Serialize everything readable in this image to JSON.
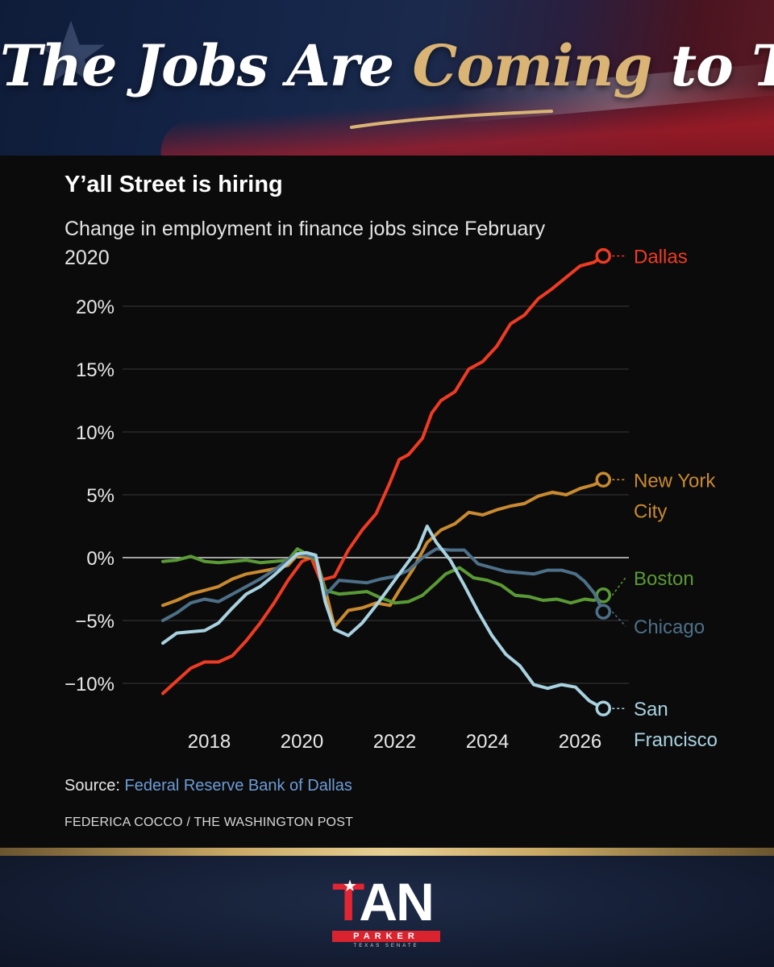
{
  "header": {
    "headline_part1": "The Jobs Are ",
    "headline_highlight": "Coming",
    "headline_part2": " to Texas."
  },
  "chart_data": {
    "type": "line",
    "title": "Y’all Street is hiring",
    "subtitle": "Change in employment in finance jobs since February 2020",
    "ylim": [
      -12.5,
      24
    ],
    "xlim": [
      2017,
      2026.6
    ],
    "y_ticks": [
      20,
      15,
      10,
      5,
      0,
      -5,
      -10
    ],
    "y_tick_labels": [
      "20%",
      "15%",
      "10%",
      "5%",
      "0%",
      "−5%",
      "−10%"
    ],
    "x_ticks": [
      2018,
      2020,
      2022,
      2024,
      2026
    ],
    "x_tick_labels": [
      "2018",
      "2020",
      "2022",
      "2024",
      "2026"
    ],
    "grid": true,
    "series": [
      {
        "name": "Dallas",
        "label_lines": [
          "Dallas"
        ],
        "color": "#ef3b24",
        "x": [
          2017.0,
          2017.3,
          2017.6,
          2017.9,
          2018.2,
          2018.5,
          2018.8,
          2019.1,
          2019.4,
          2019.7,
          2020.0,
          2020.2,
          2020.4,
          2020.7,
          2021.0,
          2021.3,
          2021.6,
          2021.9,
          2022.1,
          2022.3,
          2022.6,
          2022.8,
          2023.0,
          2023.3,
          2023.6,
          2023.9,
          2024.2,
          2024.5,
          2024.8,
          2025.1,
          2025.4,
          2025.7,
          2026.0,
          2026.3,
          2026.5
        ],
        "values": [
          -10.8,
          -9.8,
          -8.8,
          -8.3,
          -8.3,
          -7.8,
          -6.6,
          -5.2,
          -3.6,
          -1.8,
          -0.3,
          0.0,
          -1.8,
          -1.5,
          0.6,
          2.2,
          3.5,
          6.0,
          7.8,
          8.2,
          9.5,
          11.5,
          12.5,
          13.2,
          15.0,
          15.6,
          16.8,
          18.6,
          19.3,
          20.6,
          21.4,
          22.3,
          23.2,
          23.5,
          24.0
        ]
      },
      {
        "name": "New York City",
        "label_lines": [
          "New York",
          "City"
        ],
        "color": "#c98a30",
        "x": [
          2017.0,
          2017.3,
          2017.6,
          2017.9,
          2018.2,
          2018.5,
          2018.8,
          2019.1,
          2019.4,
          2019.7,
          2019.9,
          2020.1,
          2020.3,
          2020.5,
          2020.7,
          2021.0,
          2021.3,
          2021.6,
          2021.9,
          2022.1,
          2022.4,
          2022.7,
          2023.0,
          2023.3,
          2023.6,
          2023.9,
          2024.2,
          2024.5,
          2024.8,
          2025.1,
          2025.4,
          2025.7,
          2026.0,
          2026.3,
          2026.5
        ],
        "values": [
          -3.8,
          -3.4,
          -2.9,
          -2.6,
          -2.3,
          -1.7,
          -1.3,
          -1.1,
          -0.9,
          -0.6,
          0.2,
          0.0,
          0.0,
          -2.5,
          -5.5,
          -4.2,
          -4.0,
          -3.6,
          -3.8,
          -2.6,
          -0.9,
          1.2,
          2.2,
          2.7,
          3.6,
          3.4,
          3.8,
          4.1,
          4.3,
          4.9,
          5.2,
          5.0,
          5.5,
          5.8,
          6.2
        ]
      },
      {
        "name": "Boston",
        "label_lines": [
          "Boston"
        ],
        "color": "#5a9a36",
        "x": [
          2017.0,
          2017.3,
          2017.6,
          2017.9,
          2018.2,
          2018.5,
          2018.8,
          2019.1,
          2019.4,
          2019.7,
          2019.9,
          2020.1,
          2020.3,
          2020.5,
          2020.8,
          2021.1,
          2021.4,
          2021.7,
          2022.0,
          2022.3,
          2022.6,
          2022.9,
          2023.1,
          2023.4,
          2023.7,
          2024.0,
          2024.3,
          2024.6,
          2024.9,
          2025.2,
          2025.5,
          2025.8,
          2026.1,
          2026.3,
          2026.5
        ],
        "values": [
          -0.3,
          -0.2,
          0.1,
          -0.3,
          -0.4,
          -0.3,
          -0.2,
          -0.4,
          -0.3,
          -0.2,
          0.7,
          0.3,
          -0.2,
          -2.6,
          -2.9,
          -2.8,
          -2.7,
          -3.2,
          -3.6,
          -3.5,
          -3.0,
          -2.0,
          -1.3,
          -0.8,
          -1.6,
          -1.8,
          -2.2,
          -3.0,
          -3.1,
          -3.4,
          -3.3,
          -3.6,
          -3.3,
          -3.4,
          -3.0
        ]
      },
      {
        "name": "Chicago",
        "label_lines": [
          "Chicago"
        ],
        "color": "#4d7088",
        "x": [
          2017.0,
          2017.3,
          2017.6,
          2017.9,
          2018.2,
          2018.5,
          2018.8,
          2019.1,
          2019.4,
          2019.7,
          2019.9,
          2020.1,
          2020.3,
          2020.5,
          2020.8,
          2021.1,
          2021.4,
          2021.7,
          2022.0,
          2022.3,
          2022.6,
          2022.9,
          2023.2,
          2023.5,
          2023.8,
          2024.1,
          2024.4,
          2024.7,
          2025.0,
          2025.3,
          2025.6,
          2025.9,
          2026.1,
          2026.3,
          2026.5
        ],
        "values": [
          -5.0,
          -4.4,
          -3.6,
          -3.3,
          -3.5,
          -2.9,
          -2.3,
          -1.7,
          -1.0,
          -0.2,
          0.3,
          0.2,
          0.0,
          -3.0,
          -1.8,
          -1.9,
          -2.0,
          -1.7,
          -1.5,
          -1.0,
          0.0,
          0.7,
          0.6,
          0.6,
          -0.5,
          -0.8,
          -1.1,
          -1.2,
          -1.3,
          -1.0,
          -1.0,
          -1.3,
          -1.9,
          -2.8,
          -4.3
        ]
      },
      {
        "name": "San Francisco",
        "label_lines": [
          "San",
          "Francisco"
        ],
        "color": "#a9d2e0",
        "x": [
          2017.0,
          2017.3,
          2017.6,
          2017.9,
          2018.2,
          2018.5,
          2018.8,
          2019.1,
          2019.4,
          2019.7,
          2019.9,
          2020.1,
          2020.3,
          2020.5,
          2020.7,
          2021.0,
          2021.3,
          2021.6,
          2021.9,
          2022.2,
          2022.5,
          2022.7,
          2022.9,
          2023.2,
          2023.5,
          2023.8,
          2024.1,
          2024.4,
          2024.7,
          2025.0,
          2025.3,
          2025.6,
          2025.9,
          2026.2,
          2026.5
        ],
        "values": [
          -6.8,
          -6.0,
          -5.9,
          -5.8,
          -5.2,
          -4.0,
          -2.9,
          -2.3,
          -1.4,
          -0.4,
          0.3,
          0.4,
          0.2,
          -3.5,
          -5.7,
          -6.2,
          -5.2,
          -3.8,
          -2.3,
          -0.8,
          0.7,
          2.5,
          1.2,
          -0.2,
          -2.2,
          -4.3,
          -6.2,
          -7.7,
          -8.6,
          -10.1,
          -10.4,
          -10.1,
          -10.3,
          -11.4,
          -12.0
        ]
      }
    ]
  },
  "footer_source": {
    "label": "Source: ",
    "link_text": "Federal Reserve Bank of Dallas",
    "credit": "FEDERICA COCCO / THE WASHINGTON POST"
  },
  "logo": {
    "first": "T",
    "rest": "AN",
    "surname": "PARKER",
    "office": "TEXAS SENATE"
  }
}
